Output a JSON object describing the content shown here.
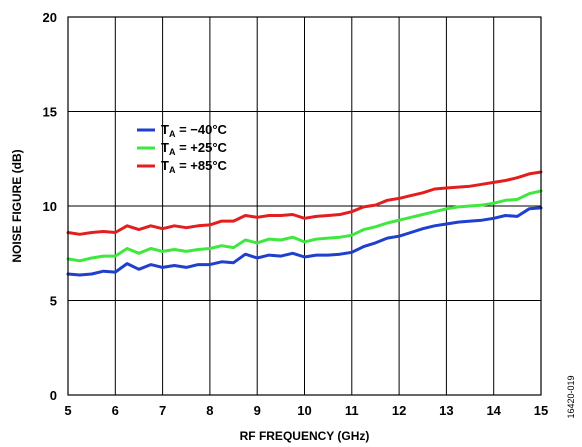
{
  "chart_data": {
    "type": "line",
    "title": "",
    "xlabel": "RF FREQUENCY (GHz)",
    "ylabel": "NOISE FIGURE (dB)",
    "xlim": [
      5,
      15
    ],
    "ylim": [
      0,
      20
    ],
    "xticks": [
      "5",
      "6",
      "7",
      "8",
      "9",
      "10",
      "11",
      "12",
      "13",
      "14",
      "15"
    ],
    "yticks": [
      "0",
      "5",
      "10",
      "15",
      "20"
    ],
    "grid": true,
    "legend_position": "top-left-inside",
    "x": [
      5,
      5.25,
      5.5,
      5.75,
      6,
      6.25,
      6.5,
      6.75,
      7,
      7.25,
      7.5,
      7.75,
      8,
      8.25,
      8.5,
      8.75,
      9,
      9.25,
      9.5,
      9.75,
      10,
      10.25,
      10.5,
      10.75,
      11,
      11.25,
      11.5,
      11.75,
      12,
      12.25,
      12.5,
      12.75,
      13,
      13.25,
      13.5,
      13.75,
      14,
      14.25,
      14.5,
      14.75,
      15
    ],
    "series": [
      {
        "name_main": "T",
        "name_sub": "A",
        "name_rest": " = −40°C",
        "color": "#1f3fcf",
        "values": [
          6.4,
          6.35,
          6.4,
          6.55,
          6.5,
          6.95,
          6.65,
          6.9,
          6.75,
          6.85,
          6.75,
          6.9,
          6.9,
          7.05,
          7.0,
          7.45,
          7.25,
          7.4,
          7.35,
          7.5,
          7.3,
          7.4,
          7.4,
          7.45,
          7.55,
          7.85,
          8.05,
          8.3,
          8.4,
          8.6,
          8.8,
          8.95,
          9.05,
          9.15,
          9.2,
          9.25,
          9.35,
          9.5,
          9.45,
          9.85,
          9.9
        ]
      },
      {
        "name_main": "T",
        "name_sub": "A",
        "name_rest": " = +25°C",
        "color": "#3ee83e",
        "values": [
          7.2,
          7.1,
          7.25,
          7.35,
          7.35,
          7.75,
          7.5,
          7.75,
          7.6,
          7.7,
          7.6,
          7.7,
          7.75,
          7.9,
          7.8,
          8.2,
          8.05,
          8.25,
          8.2,
          8.35,
          8.1,
          8.25,
          8.3,
          8.35,
          8.45,
          8.75,
          8.9,
          9.1,
          9.25,
          9.4,
          9.55,
          9.7,
          9.85,
          9.95,
          10.0,
          10.05,
          10.15,
          10.3,
          10.35,
          10.65,
          10.8
        ]
      },
      {
        "name_main": "T",
        "name_sub": "A",
        "name_rest": " = +85°C",
        "color": "#e41e1e",
        "values": [
          8.6,
          8.5,
          8.6,
          8.65,
          8.6,
          8.95,
          8.75,
          8.95,
          8.8,
          8.95,
          8.85,
          8.95,
          9.0,
          9.2,
          9.2,
          9.5,
          9.4,
          9.5,
          9.5,
          9.55,
          9.35,
          9.45,
          9.5,
          9.55,
          9.7,
          9.95,
          10.05,
          10.3,
          10.4,
          10.55,
          10.7,
          10.9,
          10.95,
          11.0,
          11.05,
          11.15,
          11.25,
          11.35,
          11.5,
          11.7,
          11.8
        ]
      }
    ]
  },
  "figure_id": "16420-019"
}
